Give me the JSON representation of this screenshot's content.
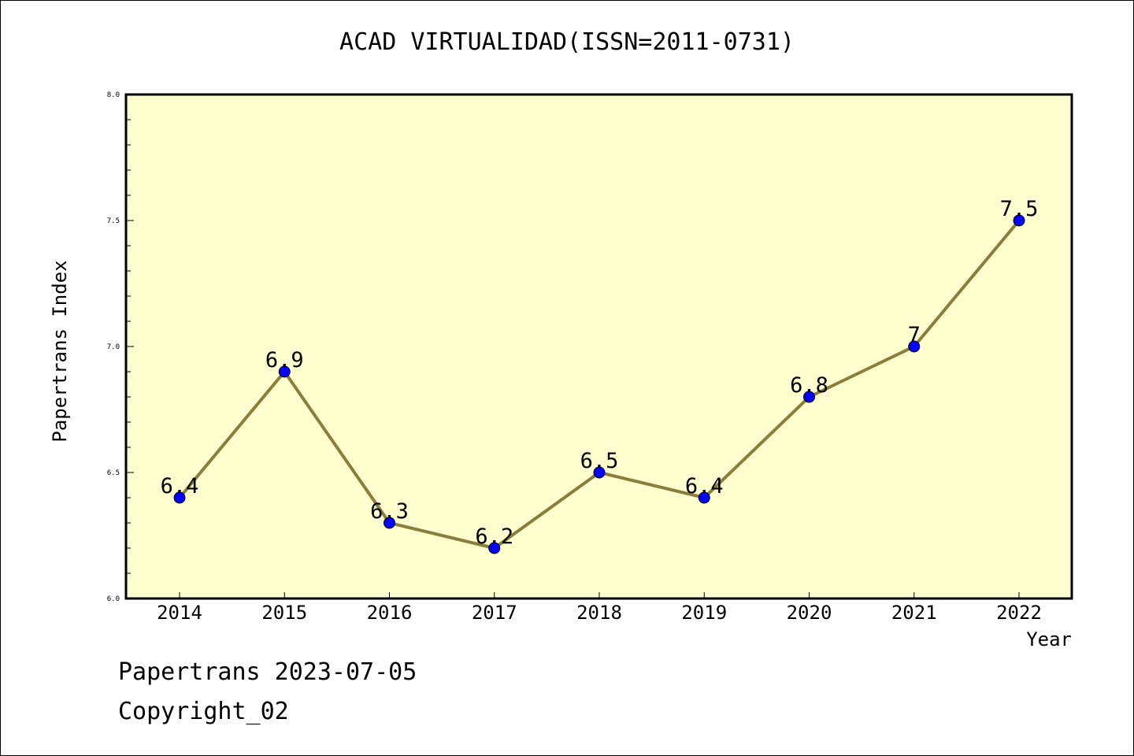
{
  "chart_data": {
    "type": "line",
    "title": "ACAD VIRTUALIDAD(ISSN=2011-0731)",
    "xlabel": "Year",
    "ylabel": "Papertrans Index",
    "categories": [
      "2014",
      "2015",
      "2016",
      "2017",
      "2018",
      "2019",
      "2020",
      "2021",
      "2022"
    ],
    "series": [
      {
        "values": [
          6.4,
          6.9,
          6.3,
          6.2,
          6.5,
          6.4,
          6.8,
          7.0,
          7.5
        ],
        "labels": [
          "6.4",
          "6.9",
          "6.3",
          "6.2",
          "6.5",
          "6.4",
          "6.8",
          "7",
          "7.5"
        ]
      }
    ],
    "ylim": [
      6.0,
      8.0
    ],
    "yticks": [
      "6.0",
      "6.5",
      "7.0",
      "7.5",
      "8.0"
    ],
    "grid": false,
    "colors": {
      "plot_background": "#ffffd0",
      "line": "#8b7d3a",
      "marker": "#0000ff"
    }
  },
  "footer": {
    "date_line": "Papertrans 2023-07-05",
    "copyright": "Copyright_02"
  }
}
